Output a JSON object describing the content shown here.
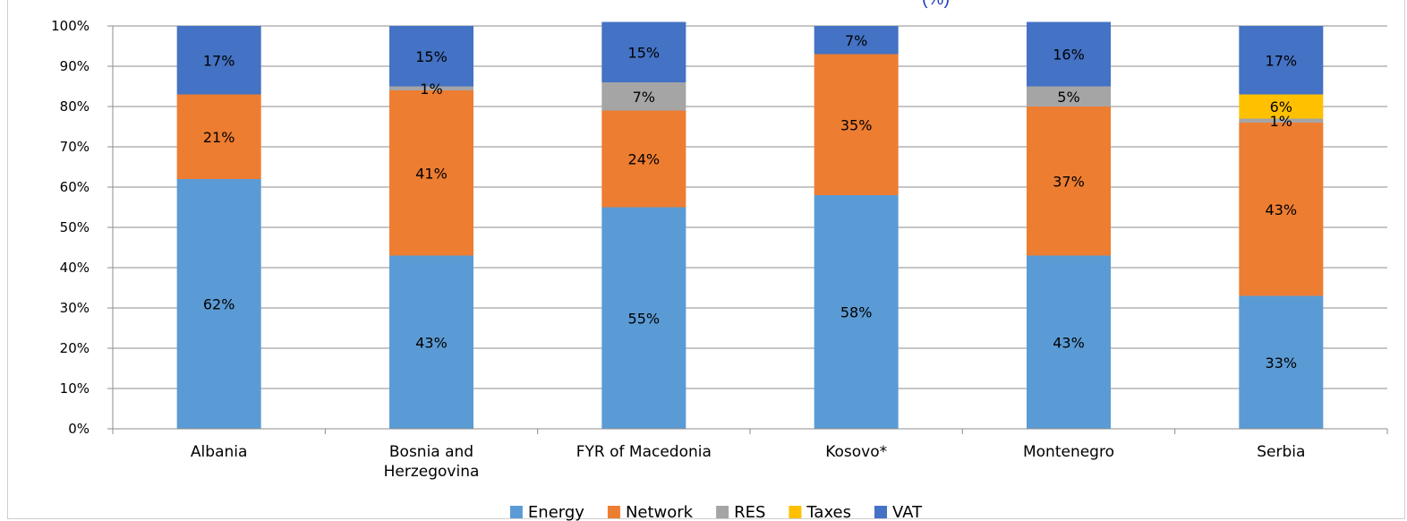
{
  "title_fragment": "(%)",
  "chart_data": {
    "type": "bar",
    "stacked": true,
    "categories": [
      "Albania",
      "Bosnia and Herzegovina",
      "FYR of Macedonia",
      "Kosovo*",
      "Montenegro",
      "Serbia"
    ],
    "category_lines": [
      [
        "Albania"
      ],
      [
        "Bosnia and",
        "Herzegovina"
      ],
      [
        "FYR of Macedonia"
      ],
      [
        "Kosovo*"
      ],
      [
        "Montenegro"
      ],
      [
        "Serbia"
      ]
    ],
    "series": [
      {
        "name": "Energy",
        "color": "#5b9bd5",
        "values": [
          62,
          43,
          55,
          58,
          43,
          33
        ]
      },
      {
        "name": "Network",
        "color": "#ed7d31",
        "values": [
          21,
          41,
          24,
          35,
          37,
          43
        ]
      },
      {
        "name": "RES",
        "color": "#a5a5a5",
        "values": [
          0,
          1,
          7,
          0,
          5,
          1
        ]
      },
      {
        "name": "Taxes",
        "color": "#ffc000",
        "values": [
          0,
          0,
          0,
          0,
          0,
          6
        ]
      },
      {
        "name": "VAT",
        "color": "#4472c4",
        "values": [
          17,
          15,
          15,
          7,
          16,
          17
        ]
      }
    ],
    "ylim": [
      0,
      100
    ],
    "yticks": [
      "0%",
      "10%",
      "20%",
      "30%",
      "40%",
      "50%",
      "60%",
      "70%",
      "80%",
      "90%",
      "100%"
    ],
    "grid": true,
    "legend": "bottom"
  }
}
